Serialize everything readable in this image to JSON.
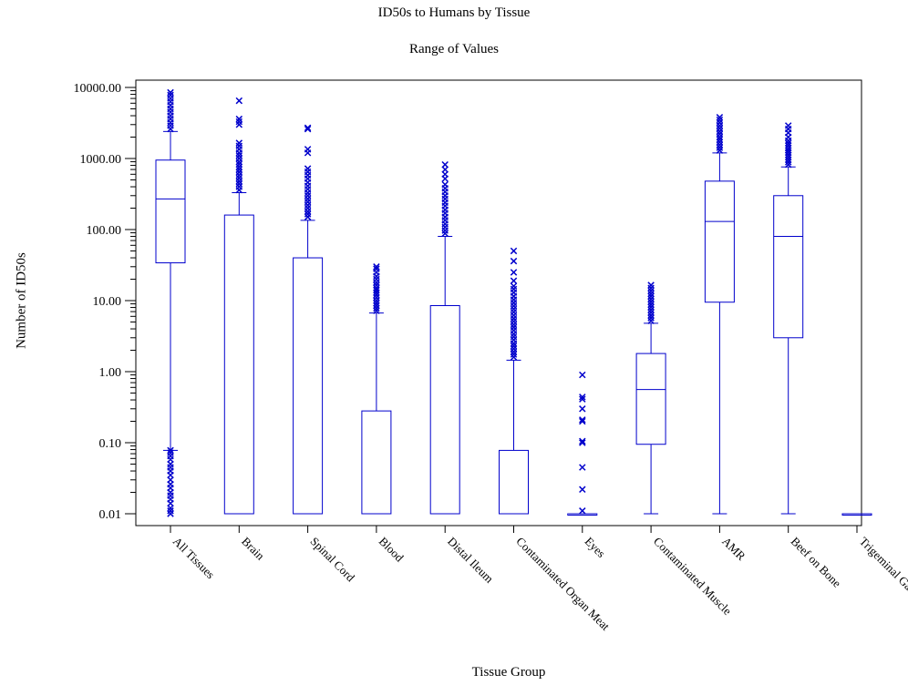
{
  "chart_data": {
    "type": "boxplot",
    "title": "ID50s to Humans by Tissue",
    "subtitle": "Range of Values",
    "xlabel": "Tissue Group",
    "ylabel": "Number of ID50s",
    "yscale": "log",
    "ylim": [
      0.01,
      10000
    ],
    "yticks": [
      "0.01",
      "0.10",
      "1.00",
      "10.00",
      "100.00",
      "1000.00",
      "10000.00"
    ],
    "grid": false,
    "color": "#0000cc",
    "categories": [
      "All Tissues",
      "Brain",
      "Spinal Cord",
      "Blood",
      "Distal Ileum",
      "Contaminated Organ Meat",
      "Eyes",
      "Contaminated Muscle",
      "AMR",
      "Beef on Bone",
      "Trigeminal Ganglia"
    ],
    "boxes": [
      {
        "q1": 34,
        "median": 270,
        "q3": 950,
        "whisker_low": 0.078,
        "whisker_high": 2400,
        "outliers_high": [
          2600,
          2900,
          3200,
          3600,
          4000,
          4500,
          5000,
          5600,
          6300,
          7000,
          7800,
          8500
        ],
        "outliers_low": [
          0.01,
          0.011,
          0.012,
          0.014,
          0.016,
          0.018,
          0.02,
          0.023,
          0.026,
          0.03,
          0.035,
          0.04,
          0.045,
          0.05,
          0.058,
          0.065,
          0.072,
          0.078
        ]
      },
      {
        "q1": 0.01,
        "median": 0.01,
        "q3": 160,
        "whisker_low": 0.01,
        "whisker_high": 330,
        "outliers_high": [
          360,
          400,
          440,
          480,
          530,
          580,
          640,
          700,
          760,
          830,
          900,
          1000,
          1100,
          1200,
          1350,
          1500,
          1650,
          3000,
          3300,
          3600,
          6500
        ],
        "outliers_low": []
      },
      {
        "q1": 0.01,
        "median": 0.01,
        "q3": 40,
        "whisker_low": 0.01,
        "whisker_high": 135,
        "outliers_high": [
          150,
          165,
          180,
          200,
          220,
          245,
          270,
          300,
          330,
          370,
          410,
          460,
          520,
          580,
          650,
          720,
          1200,
          1350,
          2600,
          2700
        ],
        "outliers_low": []
      },
      {
        "q1": 0.01,
        "median": 0.01,
        "q3": 0.28,
        "whisker_low": 0.01,
        "whisker_high": 6.7,
        "outliers_high": [
          7.2,
          7.8,
          8.5,
          9.2,
          10,
          11,
          12,
          13,
          14,
          15,
          16.5,
          18,
          20,
          22,
          25,
          28,
          30
        ],
        "outliers_low": []
      },
      {
        "q1": 0.01,
        "median": 0.01,
        "q3": 8.5,
        "whisker_low": 0.01,
        "whisker_high": 80,
        "outliers_high": [
          88,
          97,
          108,
          120,
          135,
          150,
          170,
          190,
          215,
          240,
          270,
          300,
          340,
          380,
          430,
          520,
          600,
          700,
          820
        ],
        "outliers_low": []
      },
      {
        "q1": 0.01,
        "median": 0.01,
        "q3": 0.078,
        "whisker_low": 0.01,
        "whisker_high": 1.45,
        "outliers_high": [
          1.6,
          1.75,
          1.9,
          2.1,
          2.3,
          2.5,
          2.8,
          3.1,
          3.4,
          3.8,
          4.2,
          4.6,
          5.1,
          5.6,
          6.2,
          6.9,
          7.6,
          8.4,
          9.3,
          10.3,
          11.5,
          13,
          14.5,
          16,
          19,
          25,
          36,
          50
        ],
        "outliers_low": []
      },
      {
        "q1": 0.01,
        "median": 0.01,
        "q3": 0.01,
        "whisker_low": 0.01,
        "whisker_high": 0.01,
        "outliers_high": [
          0.011,
          0.022,
          0.045,
          0.1,
          0.105,
          0.2,
          0.21,
          0.3,
          0.41,
          0.44,
          0.9
        ],
        "outliers_low": []
      },
      {
        "q1": 0.095,
        "median": 0.56,
        "q3": 1.8,
        "whisker_low": 0.01,
        "whisker_high": 4.8,
        "outliers_high": [
          5.2,
          5.7,
          6.2,
          6.8,
          7.4,
          8.1,
          8.8,
          9.6,
          10.5,
          11.5,
          12.5,
          13.7,
          15,
          16.5
        ],
        "outliers_low": []
      },
      {
        "q1": 9.5,
        "median": 130,
        "q3": 480,
        "whisker_low": 0.01,
        "whisker_high": 1200,
        "outliers_high": [
          1300,
          1420,
          1550,
          1700,
          1850,
          2000,
          2200,
          2400,
          2650,
          2900,
          3200,
          3500,
          3800
        ],
        "outliers_low": []
      },
      {
        "q1": 3,
        "median": 80,
        "q3": 300,
        "whisker_low": 0.01,
        "whisker_high": 760,
        "outliers_high": [
          820,
          890,
          960,
          1040,
          1120,
          1210,
          1300,
          1400,
          1520,
          1640,
          1780,
          2000,
          2300,
          2600,
          2900
        ],
        "outliers_low": []
      },
      {
        "q1": 0.01,
        "median": 0.01,
        "q3": 0.01,
        "whisker_low": 0.01,
        "whisker_high": 0.01,
        "outliers_high": [],
        "outliers_low": []
      }
    ]
  }
}
